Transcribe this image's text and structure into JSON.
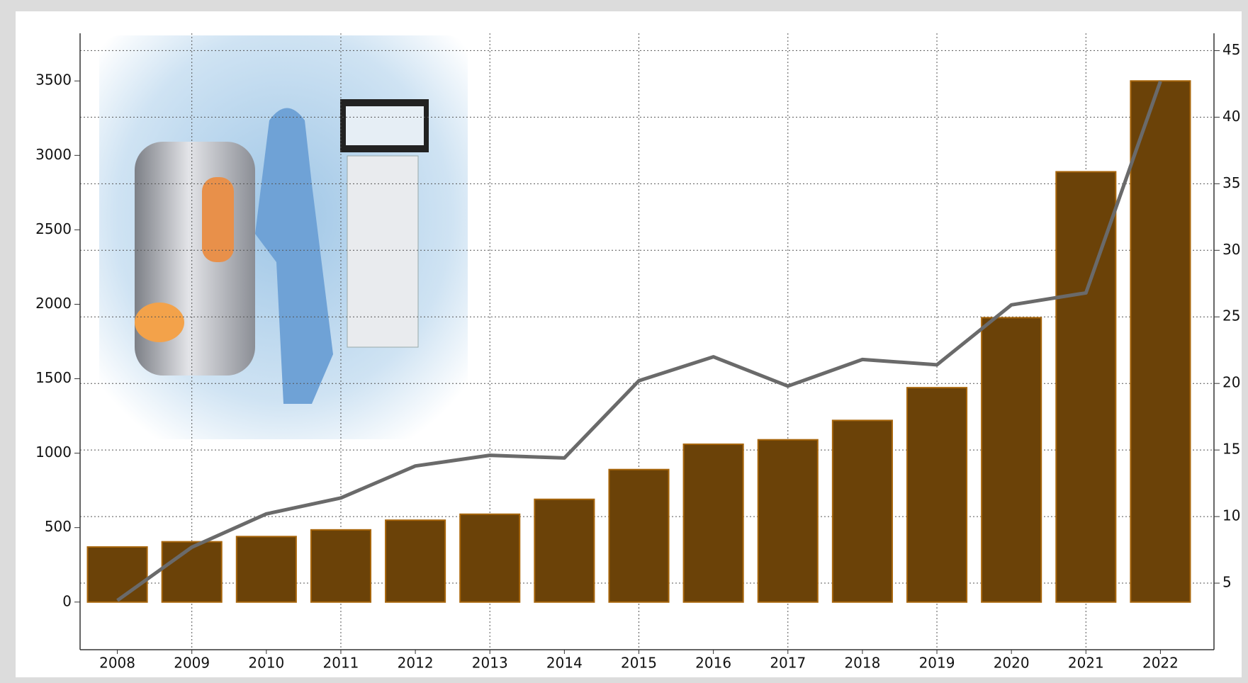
{
  "chart_data": {
    "type": "bar",
    "categories": [
      "2008",
      "2009",
      "2010",
      "2011",
      "2012",
      "2013",
      "2014",
      "2015",
      "2016",
      "2017",
      "2018",
      "2019",
      "2020",
      "2021",
      "2022"
    ],
    "series": [
      {
        "type": "bar",
        "color": "#6b4208",
        "values": [
          370,
          405,
          440,
          485,
          550,
          590,
          690,
          890,
          1060,
          1090,
          1220,
          1440,
          1910,
          2890,
          3500
        ]
      },
      {
        "type": "line",
        "axis": "y2",
        "color": "#6a6a6a",
        "values": [
          3.7,
          7.7,
          10.2,
          11.4,
          13.8,
          14.6,
          14.4,
          20.2,
          22.0,
          19.8,
          21.8,
          21.4,
          25.9,
          26.8,
          42.7
        ]
      }
    ],
    "ylim": [
      -320,
      3820
    ],
    "yticks": [
      0,
      500,
      1000,
      1500,
      2000,
      2500,
      3000,
      3500
    ],
    "y2lim": [
      0,
      46.3
    ],
    "y2ticks": [
      5,
      10,
      15,
      20,
      25,
      30,
      35,
      40,
      45
    ],
    "grid": true
  }
}
